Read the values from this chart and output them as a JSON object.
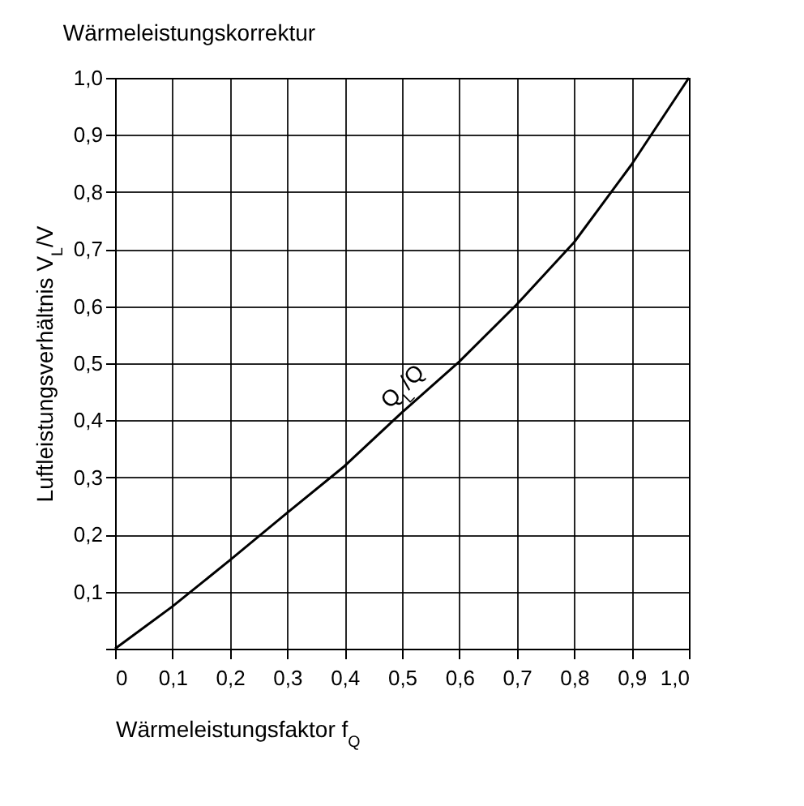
{
  "chart_data": {
    "type": "line",
    "title": "Wärmeleistungskorrektur",
    "xlabel": "Wärmeleistungsfaktor f$_{Q}$",
    "ylabel": "Luftleistungsverhältnis V$_{L}$/V",
    "x": [
      0,
      0.1,
      0.2,
      0.3,
      0.4,
      0.5,
      0.6,
      0.7,
      0.8,
      0.9,
      1.0
    ],
    "series": [
      {
        "color": "#000000",
        "values": [
          0,
          0.074,
          0.155,
          0.238,
          0.32,
          0.414,
          0.503,
          0.603,
          0.712,
          0.848,
          1.0
        ]
      }
    ],
    "xlim": [
      0,
      1
    ],
    "ylim": [
      0,
      1
    ],
    "xticks": [
      0,
      {
        "value": 0.1,
        "label": "0,1"
      },
      {
        "value": 0.2,
        "label": "0,2"
      },
      {
        "value": 0.3,
        "label": "0,3"
      },
      {
        "value": 0.4,
        "label": "0,4"
      },
      {
        "value": 0.5,
        "label": "0,5"
      },
      {
        "value": 0.6,
        "label": "0,6"
      },
      {
        "value": 0.7,
        "label": "0,7"
      },
      {
        "value": 0.8,
        "label": "0,8"
      },
      {
        "value": 0.9,
        "label": "0,9"
      },
      {
        "value": 1,
        "label": "1,0"
      }
    ],
    "yticks": [
      {
        "value": 0,
        "label": null
      },
      {
        "value": 0.1,
        "label": "0,1"
      },
      {
        "value": 0.2,
        "label": "0,2"
      },
      {
        "value": 0.3,
        "label": "0,3"
      },
      {
        "value": 0.4,
        "label": "0,4"
      },
      {
        "value": 0.5,
        "label": "0,5"
      },
      {
        "value": 0.6,
        "label": "0,6"
      },
      {
        "value": 0.7,
        "label": "0,7"
      },
      {
        "value": 0.8,
        "label": "0,8"
      },
      {
        "value": 0.9,
        "label": "0,9"
      },
      {
        "value": 1,
        "label": "1,0"
      }
    ],
    "annotations": [
      "Q$_{L}$/Q"
    ],
    "grid": true,
    "marker": "none",
    "line_style": "solid",
    "legend": false
  }
}
